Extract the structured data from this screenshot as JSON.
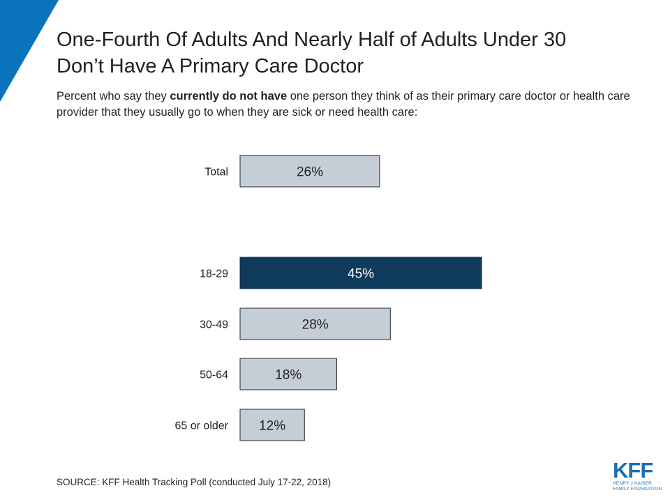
{
  "header": {
    "title_line1": "One-Fourth Of Adults And Nearly Half of Adults Under 30",
    "title_line2": "Don’t Have A Primary Care Doctor",
    "subtitle_pre": "Percent who say they ",
    "subtitle_bold": "currently do not have",
    "subtitle_post": " one person they think of as their primary care doctor or health care provider that they usually go to when they are sick or need health care:"
  },
  "chart_data": {
    "type": "bar",
    "orientation": "horizontal",
    "categories": [
      "Total",
      "18-29",
      "30-49",
      "50-64",
      "65 or older"
    ],
    "values": [
      26,
      45,
      28,
      18,
      12
    ],
    "data_labels": [
      "26%",
      "45%",
      "28%",
      "18%",
      "12%"
    ],
    "highlighted_category": "18-29",
    "colors": {
      "default": "#c5ced6",
      "highlight": "#0e3a5c",
      "border": "#1f2a33",
      "label_default": "#231f20",
      "label_highlight": "#ffffff"
    },
    "grid": false
  },
  "footer": {
    "source": "SOURCE: KFF Health Tracking Poll (conducted July 17-22, 2018)"
  },
  "logo": {
    "main": "KFF",
    "sub_line1": "HENRY J KAISER",
    "sub_line2": "FAMILY FOUNDATION",
    "color": "#1a6fb3"
  },
  "decor": {
    "corner_color": "#0a73bb"
  }
}
